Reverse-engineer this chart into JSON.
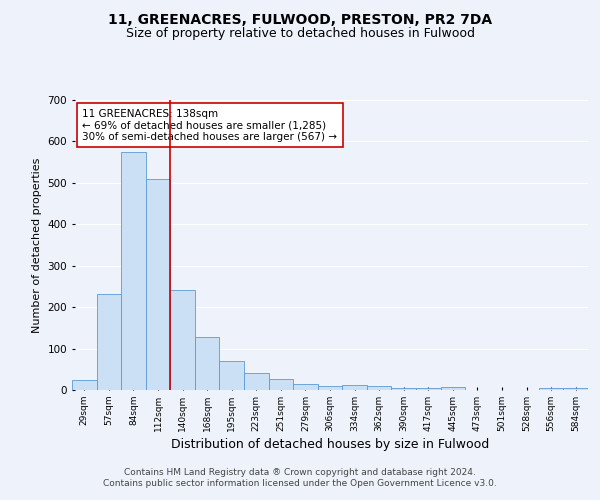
{
  "title1": "11, GREENACRES, FULWOOD, PRESTON, PR2 7DA",
  "title2": "Size of property relative to detached houses in Fulwood",
  "xlabel": "Distribution of detached houses by size in Fulwood",
  "ylabel": "Number of detached properties",
  "categories": [
    "29sqm",
    "57sqm",
    "84sqm",
    "112sqm",
    "140sqm",
    "168sqm",
    "195sqm",
    "223sqm",
    "251sqm",
    "279sqm",
    "306sqm",
    "334sqm",
    "362sqm",
    "390sqm",
    "417sqm",
    "445sqm",
    "473sqm",
    "501sqm",
    "528sqm",
    "556sqm",
    "584sqm"
  ],
  "values": [
    25,
    232,
    575,
    510,
    242,
    127,
    70,
    42,
    26,
    14,
    10,
    12,
    10,
    5,
    6,
    8,
    0,
    0,
    0,
    6,
    6
  ],
  "bar_color": "#cce0f5",
  "bar_edge_color": "#5b9bd5",
  "vline_color": "#cc0000",
  "annotation_text": "11 GREENACRES: 138sqm\n← 69% of detached houses are smaller (1,285)\n30% of semi-detached houses are larger (567) →",
  "annotation_box_color": "#ffffff",
  "annotation_box_edge": "#cc0000",
  "annotation_fontsize": 7.5,
  "footer_text": "Contains HM Land Registry data ® Crown copyright and database right 2024.\nContains public sector information licensed under the Open Government Licence v3.0.",
  "background_color": "#eef3fb",
  "grid_color": "#ffffff",
  "ylim": [
    0,
    700
  ],
  "title1_fontsize": 10,
  "title2_fontsize": 9,
  "xlabel_fontsize": 9,
  "ylabel_fontsize": 8,
  "footer_fontsize": 6.5
}
